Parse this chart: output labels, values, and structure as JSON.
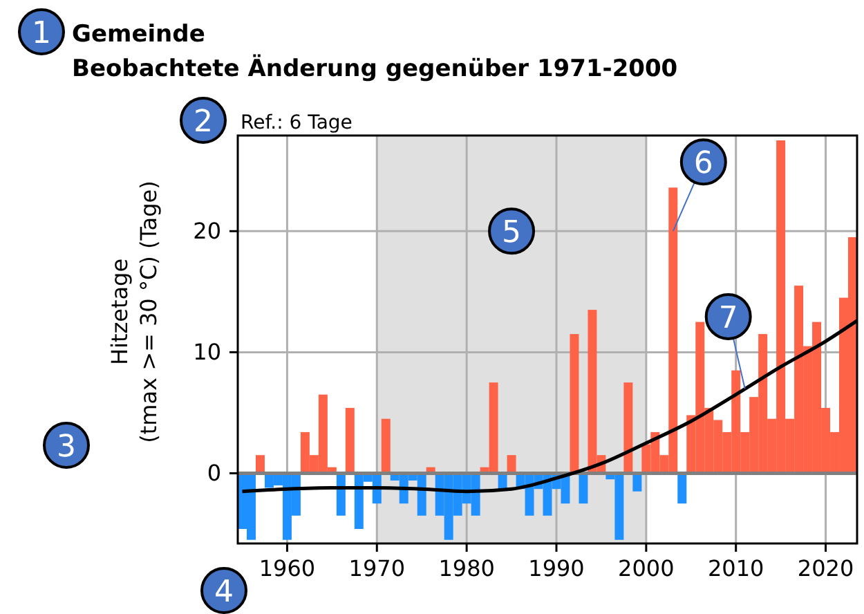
{
  "chart_data": {
    "type": "bar",
    "title": "Gemeinde\nBeobachtete Änderung gegenüber 1971-2000",
    "subtitle": "Ref.: 6 Tage",
    "ylabel": "Hitzetage\n(tmax >= 30 °C) (Tage)",
    "x": [
      1955,
      1956,
      1957,
      1958,
      1959,
      1960,
      1961,
      1962,
      1963,
      1964,
      1965,
      1966,
      1967,
      1968,
      1969,
      1970,
      1971,
      1972,
      1973,
      1974,
      1975,
      1976,
      1977,
      1978,
      1979,
      1980,
      1981,
      1982,
      1983,
      1984,
      1985,
      1986,
      1987,
      1988,
      1989,
      1990,
      1991,
      1992,
      1993,
      1994,
      1995,
      1996,
      1997,
      1998,
      1999,
      2000,
      2001,
      2002,
      2003,
      2004,
      2005,
      2006,
      2007,
      2008,
      2009,
      2010,
      2011,
      2012,
      2013,
      2014,
      2015,
      2016,
      2017,
      2018,
      2019,
      2020,
      2021,
      2022,
      2023
    ],
    "series": [
      {
        "values": [
          -4.6,
          -5.5,
          1.5,
          -1.2,
          -1.0,
          -5.5,
          -3.5,
          3.4,
          1.5,
          6.5,
          0.5,
          -3.5,
          5.4,
          -4.6,
          -0.7,
          -2.5,
          4.5,
          -0.6,
          -2.5,
          -0.6,
          -3.5,
          0.5,
          -3.5,
          -5.5,
          -3.5,
          -2.5,
          -3.5,
          0.5,
          7.5,
          -1.3,
          1.5,
          -1.3,
          -3.5,
          -1.3,
          -3.5,
          -1.3,
          -2.5,
          11.5,
          -2.5,
          13.5,
          1.5,
          -0.5,
          -5.5,
          7.5,
          -1.5,
          2.4,
          3.4,
          1.5,
          23.6,
          -2.5,
          4.8,
          12.5,
          5.4,
          4.4,
          3.4,
          8.5,
          3.4,
          6.3,
          11.5,
          4.5,
          27.5,
          4.5,
          15.5,
          10.5,
          12.5,
          5.4,
          3.4,
          14.5,
          19.5
        ],
        "colors": [
          "#1e90ff",
          "#1e90ff",
          "#ff6347",
          "#1e90ff",
          "#1e90ff",
          "#1e90ff",
          "#1e90ff",
          "#ff6347",
          "#ff6347",
          "#ff6347",
          "#ff6347",
          "#1e90ff",
          "#ff6347",
          "#1e90ff",
          "#1e90ff",
          "#1e90ff",
          "#ff6347",
          "#1e90ff",
          "#1e90ff",
          "#1e90ff",
          "#1e90ff",
          "#ff6347",
          "#1e90ff",
          "#1e90ff",
          "#1e90ff",
          "#1e90ff",
          "#1e90ff",
          "#ff6347",
          "#ff6347",
          "#1e90ff",
          "#ff6347",
          "#1e90ff",
          "#1e90ff",
          "#1e90ff",
          "#1e90ff",
          "#1e90ff",
          "#1e90ff",
          "#ff6347",
          "#1e90ff",
          "#ff6347",
          "#ff6347",
          "#1e90ff",
          "#1e90ff",
          "#ff6347",
          "#1e90ff",
          "#ff6347",
          "#ff6347",
          "#ff6347",
          "#ff6347",
          "#1e90ff",
          "#ff6347",
          "#ff6347",
          "#ff6347",
          "#ff6347",
          "#ff6347",
          "#ff6347",
          "#ff6347",
          "#ff6347",
          "#ff6347",
          "#ff6347",
          "#ff6347",
          "#ff6347",
          "#ff6347",
          "#ff6347",
          "#ff6347",
          "#ff6347",
          "#ff6347",
          "#ff6347",
          "#ff6347"
        ]
      },
      {
        "type": "line",
        "color": "#000000",
        "x": [
          1955,
          1960,
          1965,
          1970,
          1975,
          1980,
          1985,
          1990,
          1995,
          2000,
          2005,
          2010,
          2015,
          2020,
          2023.5
        ],
        "values": [
          -1.5,
          -1.3,
          -1.2,
          -1.2,
          -1.3,
          -1.5,
          -1.3,
          -0.4,
          0.8,
          2.5,
          4.3,
          6.5,
          8.8,
          10.9,
          12.6
        ]
      }
    ],
    "xlim": [
      1954.5,
      2023.5
    ],
    "xticks": [
      1960,
      1970,
      1980,
      1990,
      2000,
      2010,
      2020
    ],
    "ylim": [
      -5.8,
      27.9
    ],
    "yticks": [
      0,
      10,
      20
    ],
    "grid": true,
    "bands": [
      {
        "axis": "x",
        "from": 1970,
        "to": 2000,
        "label": null,
        "color": "#e0e0e0"
      }
    ],
    "ref_lines": [
      {
        "axis": "y",
        "value": 0,
        "label": null,
        "color": "#808080"
      }
    ],
    "annotations": [
      "1",
      "2",
      "3",
      "4",
      {
        "text": "5",
        "x": 1985,
        "y": 20
      },
      {
        "text": "6",
        "x": 2003,
        "y": 20
      },
      {
        "text": "7",
        "x": 2011,
        "y": 7
      }
    ]
  }
}
